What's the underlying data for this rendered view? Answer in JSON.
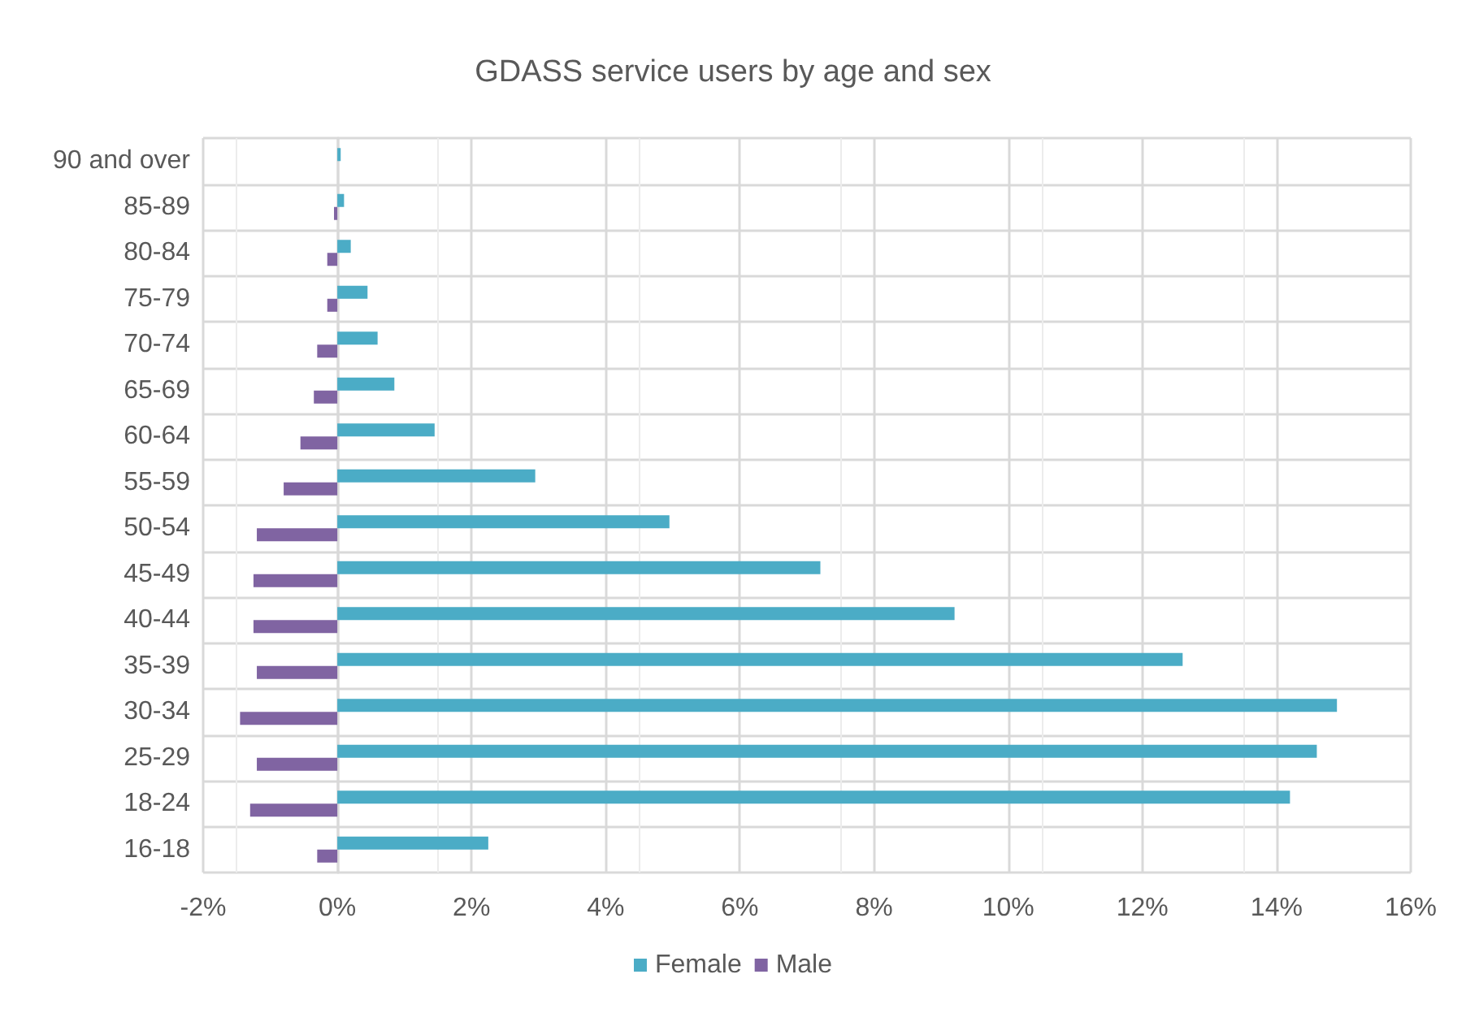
{
  "chart_data": {
    "type": "bar",
    "orientation": "horizontal",
    "title": "GDASS service users by age and sex",
    "categories": [
      "90 and over",
      "85-89",
      "80-84",
      "75-79",
      "70-74",
      "65-69",
      "60-64",
      "55-59",
      "50-54",
      "45-49",
      "40-44",
      "35-39",
      "30-34",
      "25-29",
      "18-24",
      "16-18"
    ],
    "series": [
      {
        "name": "Female",
        "color": "#4bacc6",
        "values": [
          0.05,
          0.1,
          0.2,
          0.45,
          0.6,
          0.85,
          1.45,
          2.95,
          4.95,
          7.2,
          9.2,
          12.6,
          14.9,
          14.6,
          14.2,
          2.25
        ]
      },
      {
        "name": "Male",
        "color": "#8064a2",
        "values": [
          0,
          -0.05,
          -0.15,
          -0.15,
          -0.3,
          -0.35,
          -0.55,
          -0.8,
          -1.2,
          -1.25,
          -1.25,
          -1.2,
          -1.45,
          -1.2,
          -1.3,
          -0.3
        ]
      }
    ],
    "xlim": [
      -2,
      16
    ],
    "xticks": [
      {
        "value": -2,
        "label": "-2%"
      },
      {
        "value": 0,
        "label": "0%"
      },
      {
        "value": 2,
        "label": "2%"
      },
      {
        "value": 4,
        "label": "4%"
      },
      {
        "value": 6,
        "label": "6%"
      },
      {
        "value": 8,
        "label": "8%"
      },
      {
        "value": 10,
        "label": "10%"
      },
      {
        "value": 12,
        "label": "12%"
      },
      {
        "value": 14,
        "label": "14%"
      },
      {
        "value": 16,
        "label": "16%"
      }
    ],
    "grid": true,
    "legend": "bottom"
  }
}
